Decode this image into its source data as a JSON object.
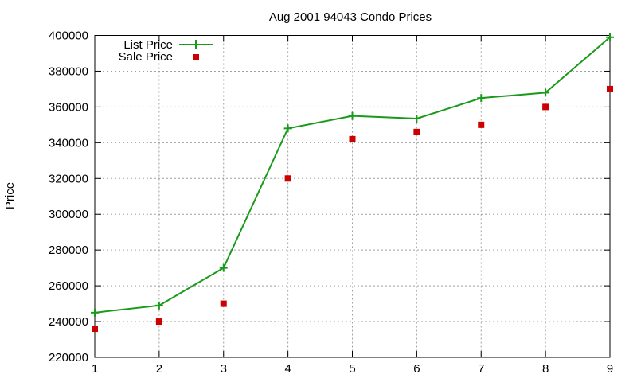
{
  "chart_data": {
    "type": "line",
    "title": "Aug 2001 94043 Condo Prices",
    "xlabel": "",
    "ylabel": "Price",
    "x": [
      1,
      2,
      3,
      4,
      5,
      6,
      7,
      8,
      9
    ],
    "xlim": [
      1,
      9
    ],
    "ylim": [
      220000,
      400000
    ],
    "xticks": [
      "1",
      "2",
      "3",
      "4",
      "5",
      "6",
      "7",
      "8",
      "9"
    ],
    "yticks": [
      "220000",
      "240000",
      "260000",
      "280000",
      "300000",
      "320000",
      "340000",
      "360000",
      "380000",
      "400000"
    ],
    "grid": true,
    "legend_position": "top-left",
    "series": [
      {
        "name": "List Price",
        "style": "line-with-plus-markers",
        "color": "#1a9a1a",
        "values": [
          245000,
          249000,
          270000,
          348000,
          355000,
          353500,
          365000,
          368000,
          399000
        ]
      },
      {
        "name": "Sale Price",
        "style": "square-markers",
        "color": "#cc0000",
        "values": [
          236000,
          240000,
          250000,
          320000,
          342000,
          346000,
          350000,
          360000,
          370000
        ]
      }
    ]
  }
}
